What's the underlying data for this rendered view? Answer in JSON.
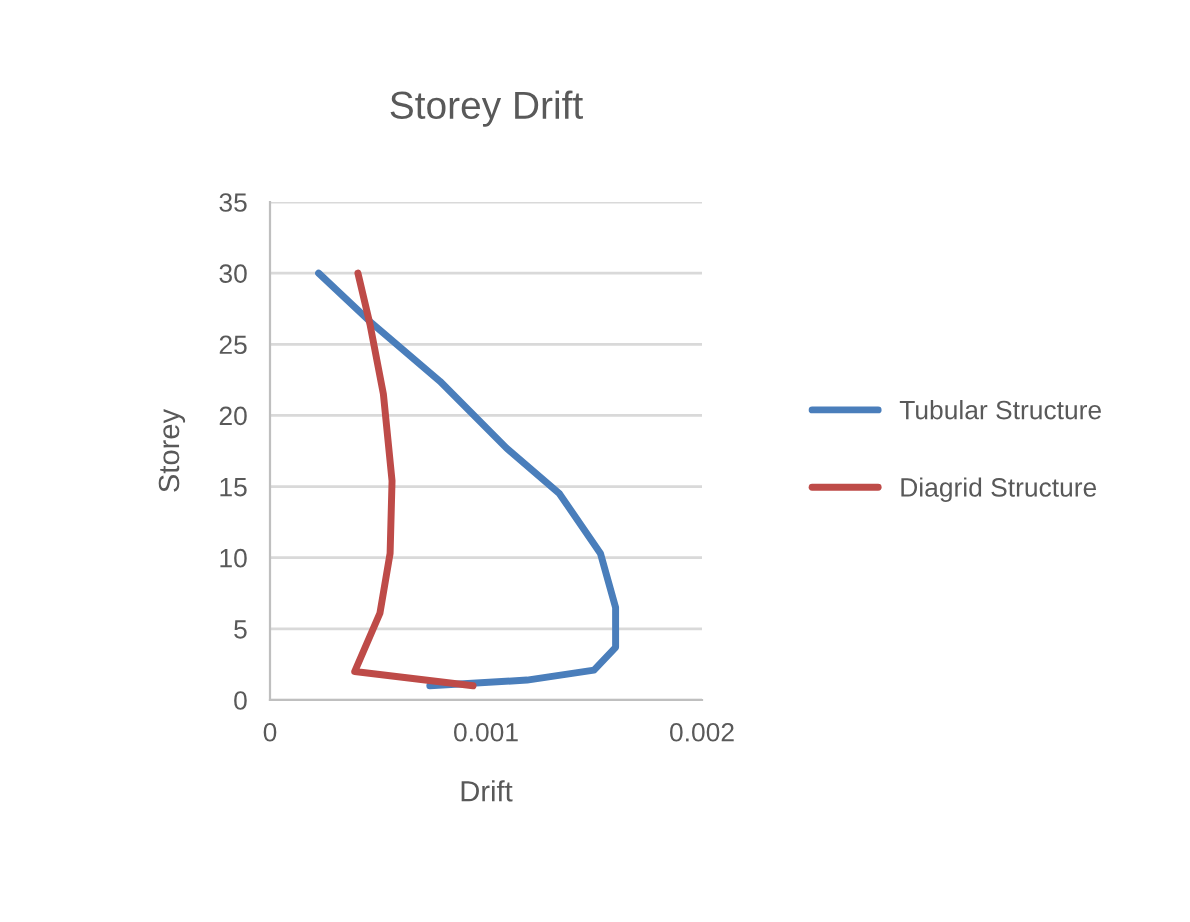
{
  "chart_data": {
    "type": "line",
    "title": "Storey Drift",
    "xlabel": "Drift",
    "ylabel": "Storey",
    "xlim": [
      0,
      0.002
    ],
    "xticks": [
      0,
      0.001,
      0.002
    ],
    "ylim": [
      0,
      35
    ],
    "yticks": [
      0,
      5,
      10,
      15,
      20,
      25,
      30,
      35
    ],
    "grid": "y",
    "legend": "right",
    "marker": "none",
    "line_style": "solid",
    "series": [
      {
        "name": "Tubular Structure",
        "color": "#4a7ebb",
        "x": [
          0.00074,
          0.00119,
          0.0015,
          0.0016,
          0.0016,
          0.00153,
          0.00134,
          0.001095,
          0.000787,
          0.000463,
          0.000225
        ],
        "values": [
          1,
          1.4,
          2.1,
          3.7,
          6.5,
          10.3,
          14.5,
          17.7,
          22.4,
          26.6,
          30
        ]
      },
      {
        "name": "Diagrid Structure",
        "color": "#be4b48",
        "x": [
          0.00094,
          0.000392,
          0.000509,
          0.000556,
          0.000565,
          0.000525,
          0.000463,
          0.000407
        ],
        "values": [
          1,
          2,
          6.1,
          10.3,
          15.4,
          21.5,
          26.4,
          30
        ]
      }
    ]
  }
}
